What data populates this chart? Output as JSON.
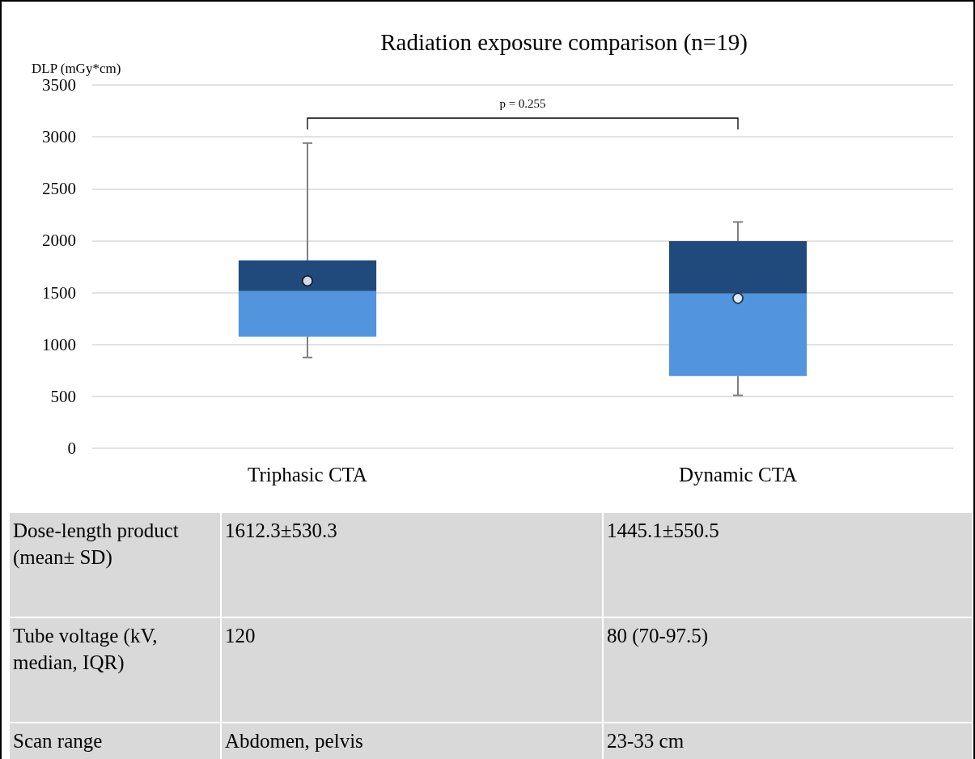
{
  "chart_data": [
    {
      "type": "box",
      "title": "Radiation exposure comparison (n=19)",
      "ylabel": "DLP (mGy*cm)",
      "categories": [
        "Triphasic CTA",
        "Dynamic CTA"
      ],
      "boxes": [
        {
          "low": 875,
          "q1": 1075,
          "median": 1515,
          "q3": 1810,
          "high": 2940,
          "mean": 1612.3
        },
        {
          "low": 510,
          "q1": 695,
          "median": 1490,
          "q3": 1995,
          "high": 2180,
          "mean": 1445.1
        }
      ],
      "colors": [
        "#5294dd",
        "#5294dd"
      ],
      "color": "#214a7c",
      "ylim": [
        0,
        3500
      ],
      "yticks": [
        0,
        500,
        1000,
        1500,
        2000,
        2500,
        3000,
        3500
      ],
      "grid": "y",
      "marker": "circle",
      "annotations": [
        "p = 0.255"
      ]
    },
    {
      "type": "other",
      "y_categories": [
        "Dose-length product (mean± SD)",
        "Tube voltage (kV, median, IQR)",
        "Scan range"
      ],
      "cell_labels": [
        [
          "1612.3±530.3",
          "1445.1±550.5"
        ],
        [
          "120",
          "80 (70-97.5)"
        ],
        [
          "Abdomen, pelvis",
          "23-33 cm"
        ]
      ]
    }
  ]
}
